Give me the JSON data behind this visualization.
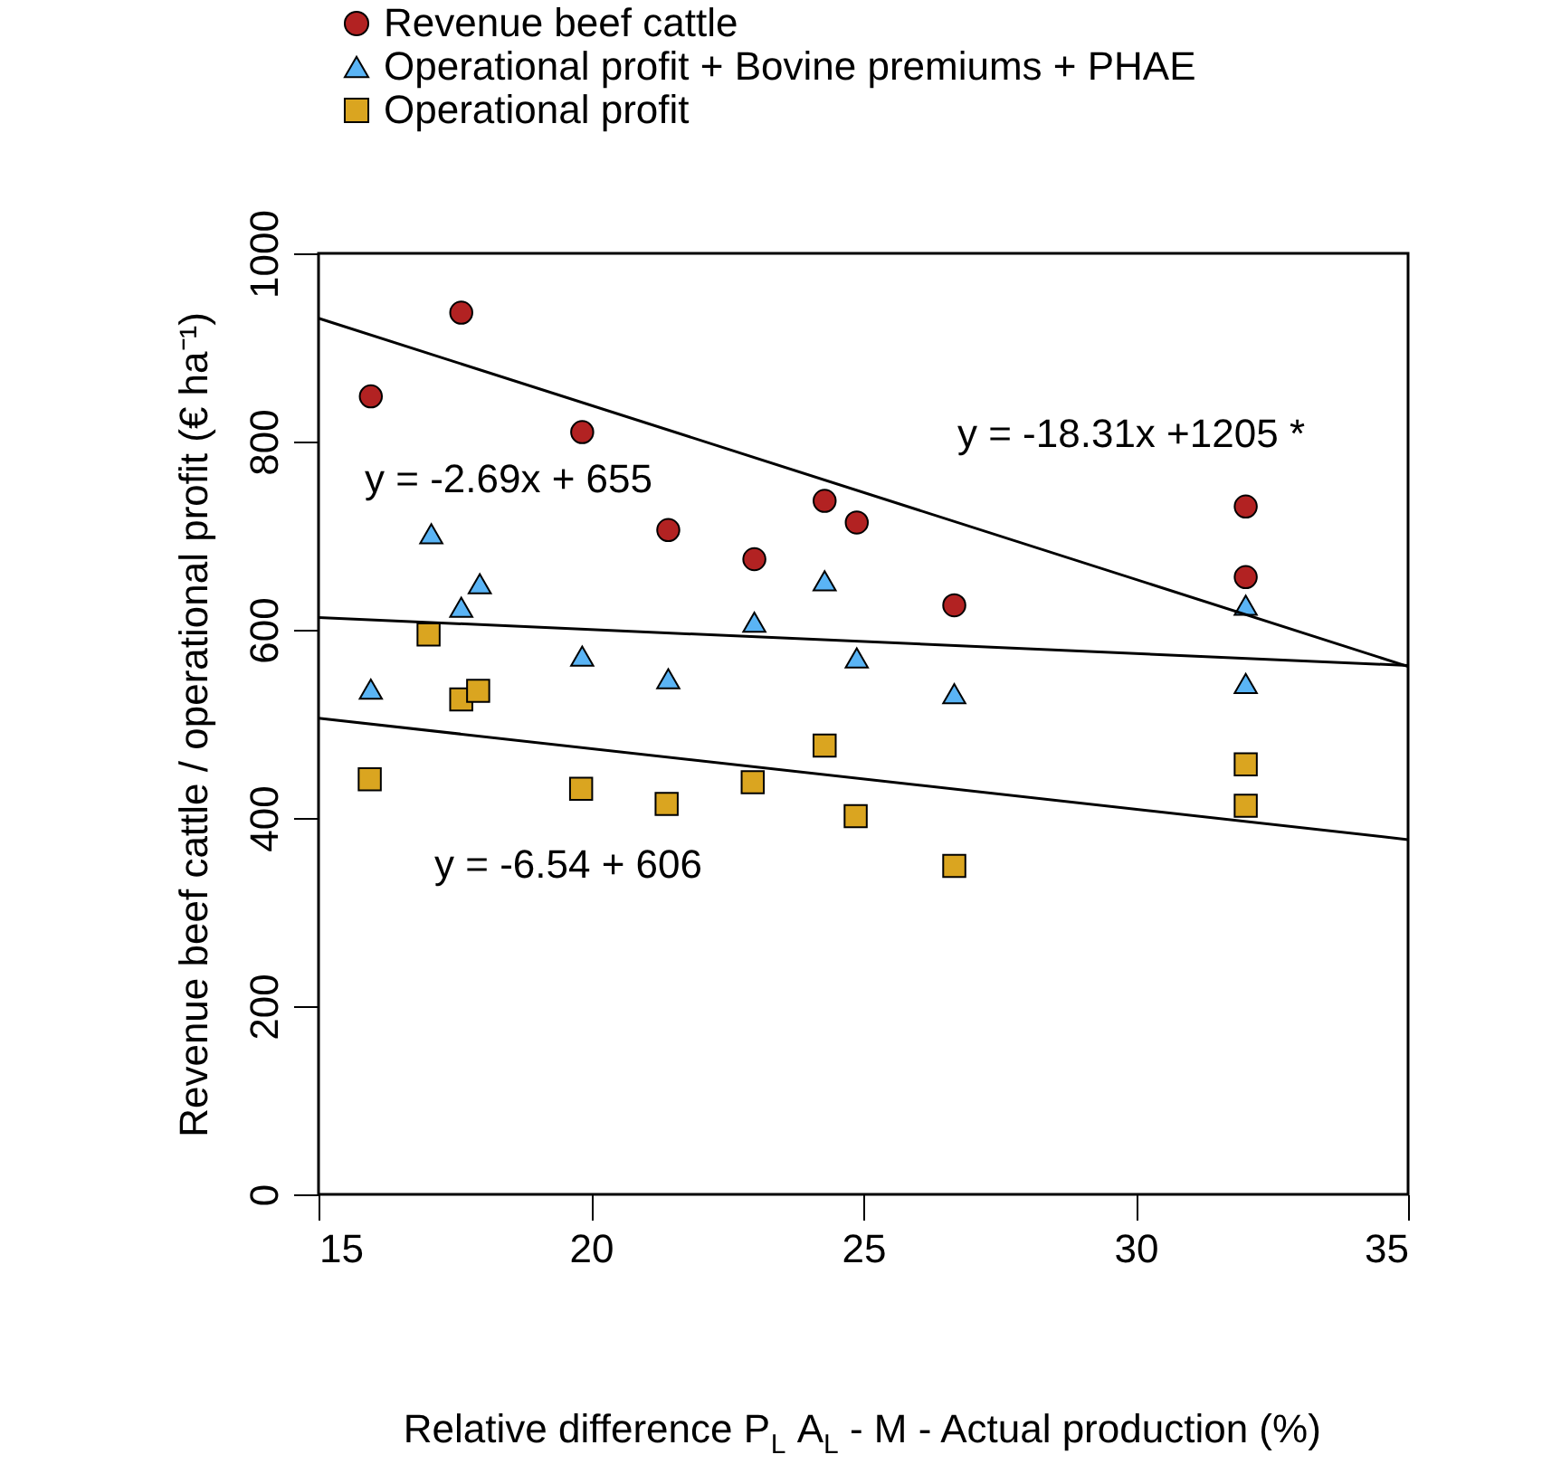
{
  "chart_data": {
    "type": "scatter",
    "xlabel": "Relative difference P$_{L}$ A$_{L}$ - M - Actual production (%)",
    "ylabel": "Revenue beef cattle / operational profit (€ ha⁻¹)",
    "xlim": [
      15,
      35
    ],
    "ylim": [
      0,
      1000
    ],
    "xticks": [
      15,
      20,
      25,
      30,
      35
    ],
    "yticks": [
      0,
      200,
      400,
      600,
      800,
      {
        "value": 1000,
        "label": "1000"
      }
    ],
    "grid": false,
    "legend": "top",
    "series": [
      {
        "name": "Revenue beef cattle",
        "color": "#b22222",
        "marker": "circle",
        "x": [
          15.96,
          17.62,
          19.84,
          21.42,
          23.0,
          24.29,
          24.88,
          26.67,
          32.02,
          32.02
        ],
        "values": [
          848,
          937,
          810,
          706,
          675,
          737,
          714,
          626,
          731,
          656
        ]
      },
      {
        "name": "Operational profit + Bovine premiums + PHAE",
        "color": "#5ab4f5",
        "marker": "triangle",
        "x": [
          15.96,
          17.07,
          17.62,
          17.96,
          19.84,
          21.42,
          23.0,
          24.29,
          24.88,
          26.67,
          32.02,
          32.02
        ],
        "values": [
          537,
          702,
          624,
          649,
          572,
          548,
          608,
          652,
          570,
          532,
          626,
          543
        ]
      },
      {
        "name": "Operational profit",
        "color": "#daa520",
        "marker": "square",
        "x": [
          15.94,
          17.02,
          17.62,
          17.93,
          19.82,
          21.39,
          22.97,
          24.29,
          24.86,
          26.67,
          32.02,
          32.02
        ],
        "values": [
          441,
          595,
          526,
          535,
          431,
          415,
          438,
          477,
          402,
          349,
          457,
          413
        ]
      },
      {
        "type": "line",
        "color": "#000000",
        "line_style": "solid",
        "x": [
          15,
          35
        ],
        "values": [
          931,
          561
        ]
      },
      {
        "type": "line",
        "color": "#000000",
        "line_style": "solid",
        "x": [
          15,
          35
        ],
        "values": [
          613,
          562
        ]
      },
      {
        "type": "line",
        "color": "#000000",
        "line_style": "solid",
        "x": [
          15,
          35
        ],
        "values": [
          506,
          377
        ]
      }
    ],
    "annotations": [
      "y = -2.69x + 655",
      "y = -18.31x +1205 *",
      "y = -6.54 + 606"
    ]
  }
}
